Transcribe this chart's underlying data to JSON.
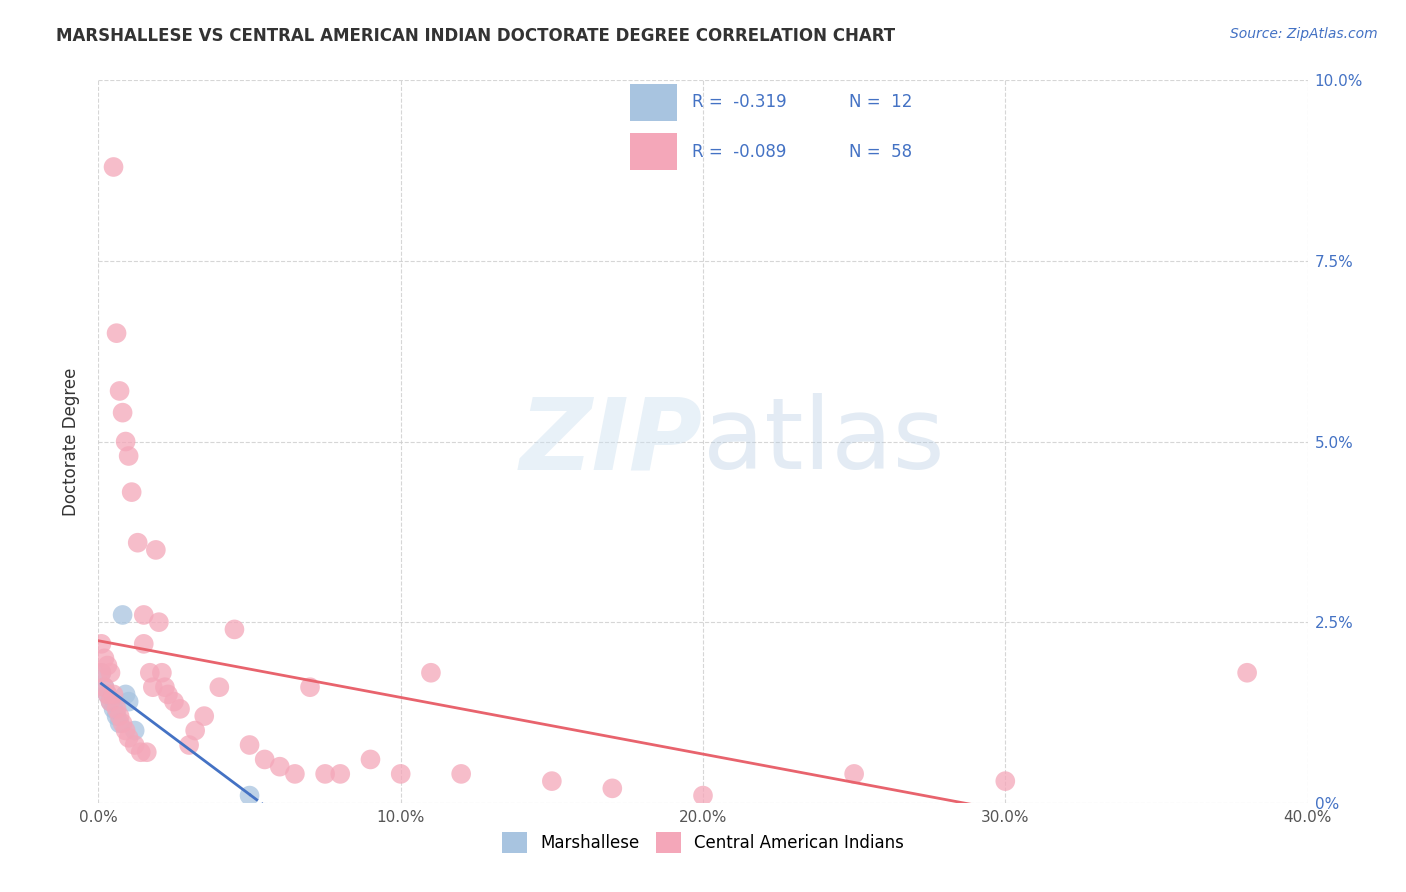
{
  "title": "MARSHALLESE VS CENTRAL AMERICAN INDIAN DOCTORATE DEGREE CORRELATION CHART",
  "source": "Source: ZipAtlas.com",
  "ylabel": "Doctorate Degree",
  "xlim": [
    0.0,
    0.4
  ],
  "ylim": [
    0.0,
    0.1
  ],
  "xticks": [
    0.0,
    0.1,
    0.2,
    0.3,
    0.4
  ],
  "yticks": [
    0.0,
    0.025,
    0.05,
    0.075,
    0.1
  ],
  "xtick_labels": [
    "0.0%",
    "10.0%",
    "20.0%",
    "30.0%",
    "40.0%"
  ],
  "ytick_labels_right": [
    "0%",
    "2.5%",
    "5.0%",
    "7.5%",
    "10.0%"
  ],
  "marshallese_color": "#a8c4e0",
  "central_color": "#f4a7b9",
  "marshallese_line_color": "#4472c4",
  "central_line_color": "#e8636d",
  "bg_color": "#ffffff",
  "grid_color": "#cccccc",
  "marsh_x": [
    0.001,
    0.002,
    0.003,
    0.004,
    0.005,
    0.006,
    0.007,
    0.008,
    0.009,
    0.01,
    0.012,
    0.05
  ],
  "marsh_y": [
    0.018,
    0.016,
    0.015,
    0.014,
    0.013,
    0.012,
    0.011,
    0.026,
    0.015,
    0.014,
    0.01,
    0.001
  ],
  "cent_x": [
    0.001,
    0.001,
    0.002,
    0.002,
    0.003,
    0.003,
    0.004,
    0.004,
    0.005,
    0.005,
    0.006,
    0.006,
    0.007,
    0.007,
    0.008,
    0.008,
    0.009,
    0.009,
    0.01,
    0.01,
    0.011,
    0.012,
    0.013,
    0.014,
    0.015,
    0.015,
    0.016,
    0.017,
    0.018,
    0.019,
    0.02,
    0.021,
    0.022,
    0.023,
    0.025,
    0.027,
    0.03,
    0.032,
    0.035,
    0.04,
    0.045,
    0.05,
    0.055,
    0.06,
    0.065,
    0.07,
    0.075,
    0.08,
    0.09,
    0.1,
    0.11,
    0.12,
    0.15,
    0.17,
    0.2,
    0.25,
    0.3,
    0.38
  ],
  "cent_y": [
    0.022,
    0.018,
    0.02,
    0.016,
    0.019,
    0.015,
    0.018,
    0.014,
    0.015,
    0.088,
    0.013,
    0.065,
    0.012,
    0.057,
    0.011,
    0.054,
    0.01,
    0.05,
    0.009,
    0.048,
    0.043,
    0.008,
    0.036,
    0.007,
    0.026,
    0.022,
    0.007,
    0.018,
    0.016,
    0.035,
    0.025,
    0.018,
    0.016,
    0.015,
    0.014,
    0.013,
    0.008,
    0.01,
    0.012,
    0.016,
    0.024,
    0.008,
    0.006,
    0.005,
    0.004,
    0.016,
    0.004,
    0.004,
    0.006,
    0.004,
    0.018,
    0.004,
    0.003,
    0.002,
    0.001,
    0.004,
    0.003,
    0.018
  ]
}
